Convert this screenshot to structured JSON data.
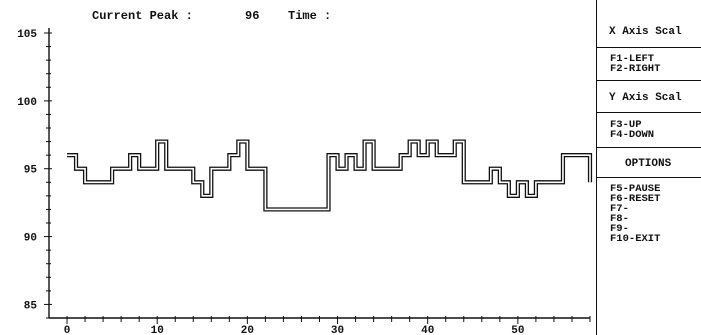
{
  "header": {
    "peak_label": "Current Peak :",
    "peak_value": "96",
    "time_label": "Time :"
  },
  "panel": {
    "x_axis_title": "X Axis Scal",
    "x_axis_items": [
      "F1-LEFT",
      "F2-RIGHT"
    ],
    "y_axis_title": "Y Axis Scal",
    "y_axis_items": [
      "F3-UP",
      "F4-DOWN"
    ],
    "options_title": "OPTIONS",
    "option_items": [
      "F5-PAUSE",
      "F6-RESET",
      "F7-",
      "F8-",
      "F9-",
      "F10-EXIT"
    ]
  },
  "chart_data": {
    "type": "line",
    "step": true,
    "title": "",
    "xlabel": "",
    "ylabel": "",
    "xlim": [
      -2,
      58
    ],
    "ylim": [
      84,
      105
    ],
    "x_ticks": [
      0,
      10,
      20,
      30,
      40,
      50
    ],
    "y_ticks": [
      85,
      90,
      95,
      100,
      105
    ],
    "grid": false,
    "x": [
      0,
      1,
      2,
      5,
      7,
      8,
      10,
      11,
      12,
      14,
      15,
      16,
      18,
      19,
      20,
      22,
      29,
      30,
      31,
      32,
      33,
      34,
      37,
      38,
      39,
      40,
      41,
      43,
      44,
      47,
      48,
      49,
      50,
      51,
      52,
      55,
      58
    ],
    "values": [
      96,
      95,
      94,
      95,
      96,
      95,
      97,
      95,
      95,
      94,
      93,
      95,
      96,
      97,
      95,
      92,
      96,
      95,
      96,
      95,
      97,
      95,
      96,
      97,
      96,
      97,
      96,
      97,
      94,
      95,
      94,
      93,
      94,
      93,
      94,
      96,
      94
    ]
  }
}
